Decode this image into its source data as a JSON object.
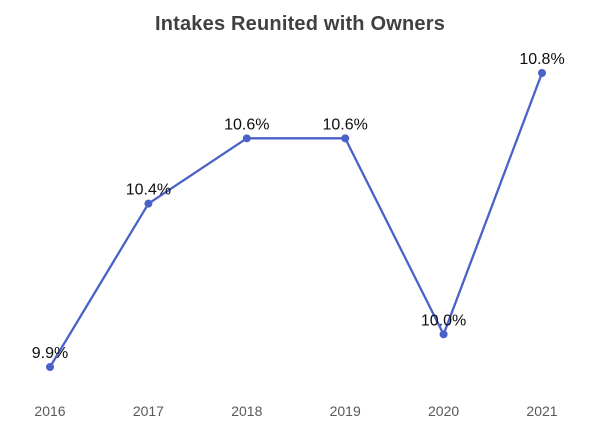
{
  "title": "Intakes Reunited with Owners",
  "colors": {
    "line": "#4a62c8",
    "marker": "#4a62c8",
    "title_text": "#404040",
    "data_label_text": "#0d0d0d",
    "axis_label_text": "#595959",
    "background": "#ffffff"
  },
  "chart_data": {
    "type": "line",
    "title": "Intakes Reunited with Owners",
    "categories": [
      "2016",
      "2017",
      "2018",
      "2019",
      "2020",
      "2021"
    ],
    "series": [
      {
        "name": "Intakes Reunited with Owners",
        "values": [
          9.9,
          10.4,
          10.6,
          10.6,
          10.0,
          10.8
        ]
      }
    ],
    "data_labels": [
      "9.9%",
      "10.4%",
      "10.6%",
      "10.6%",
      "10.0%",
      "10.8%"
    ],
    "unit": "%",
    "xlabel": "",
    "ylabel": "",
    "ylim": [
      9.8,
      10.9
    ],
    "grid": false,
    "y_axis_visible": false,
    "x_axis_line_visible": false,
    "legend": "none",
    "marker_style": "circle",
    "data_label_position": "above"
  }
}
